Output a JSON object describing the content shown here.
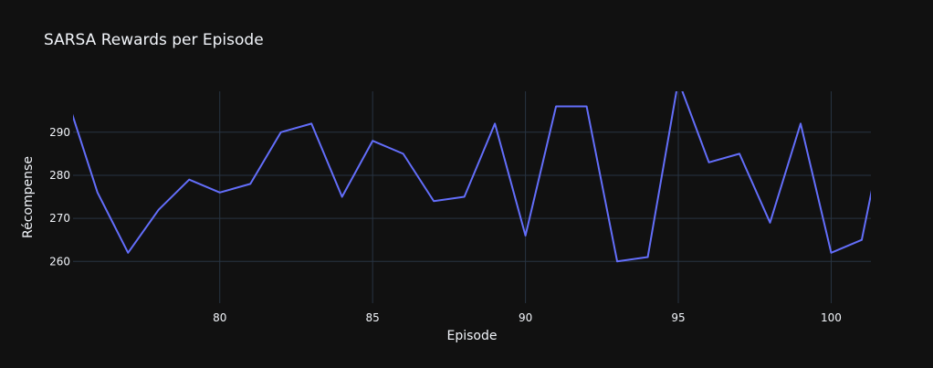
{
  "chart_data": {
    "type": "line",
    "title": "SARSA Rewards per Episode",
    "xlabel": "Episode",
    "ylabel": "Récompense",
    "xlim": [
      75.2,
      101.3
    ],
    "ylim": [
      250.3,
      299.5
    ],
    "xticks": [
      80,
      85,
      90,
      95,
      100
    ],
    "yticks": [
      260,
      270,
      280,
      290
    ],
    "grid": true,
    "series": [
      {
        "name": "",
        "color": "#636efa",
        "x": [
          75,
          76,
          77,
          78,
          79,
          80,
          81,
          82,
          83,
          84,
          85,
          86,
          87,
          88,
          89,
          90,
          91,
          92,
          93,
          94,
          95,
          96,
          97,
          98,
          99,
          100,
          101,
          102
        ],
        "y": [
          298,
          276,
          262,
          272,
          279,
          276,
          278,
          290,
          292,
          275,
          288,
          285,
          274,
          275,
          292,
          266,
          296,
          296,
          260,
          261,
          302,
          283,
          285,
          269,
          292,
          262,
          265,
          300
        ]
      }
    ]
  }
}
